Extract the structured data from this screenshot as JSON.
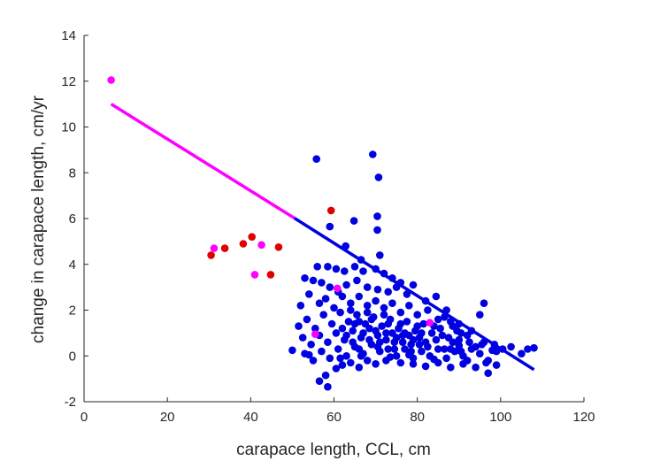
{
  "chart_data": {
    "type": "scatter",
    "xlabel": "carapace length, CCL, cm",
    "ylabel": "change in carapace length, cm/yr",
    "xlim": [
      0,
      120
    ],
    "ylim": [
      -2,
      14
    ],
    "xticks": [
      0,
      20,
      40,
      60,
      80,
      100,
      120
    ],
    "yticks": [
      -2,
      0,
      2,
      4,
      6,
      8,
      10,
      12,
      14
    ],
    "grid": false,
    "colors": {
      "blue": "#0000e0",
      "red": "#e00000",
      "magenta": "#ff00ff",
      "axis": "#262626"
    },
    "fit_line": {
      "segments": [
        {
          "x": [
            6.5,
            50.5
          ],
          "y": [
            11.0,
            6.02
          ],
          "color": "#ff00ff"
        },
        {
          "x": [
            50.5,
            108.0
          ],
          "y": [
            6.02,
            -0.6
          ],
          "color": "#0000e0"
        }
      ]
    },
    "series": [
      {
        "color": "#ff00ff",
        "points": [
          [
            6.5,
            12.05
          ],
          [
            31.2,
            4.7
          ],
          [
            41.0,
            3.55
          ],
          [
            42.6,
            4.85
          ],
          [
            55.5,
            0.95
          ],
          [
            60.8,
            2.95
          ],
          [
            83.0,
            1.45
          ]
        ]
      },
      {
        "color": "#e00000",
        "points": [
          [
            30.5,
            4.4
          ],
          [
            33.8,
            4.7
          ],
          [
            38.2,
            4.9
          ],
          [
            40.3,
            5.2
          ],
          [
            44.8,
            3.55
          ],
          [
            46.7,
            4.75
          ],
          [
            59.3,
            6.35
          ]
        ]
      },
      {
        "color": "#0000e0",
        "points": [
          [
            55.8,
            8.6
          ],
          [
            69.3,
            8.8
          ],
          [
            70.7,
            7.8
          ],
          [
            70.4,
            6.1
          ],
          [
            70.4,
            5.5
          ],
          [
            64.8,
            5.9
          ],
          [
            59.0,
            5.65
          ],
          [
            62.8,
            4.8
          ],
          [
            66.5,
            4.2
          ],
          [
            71.0,
            4.4
          ],
          [
            56.0,
            3.9
          ],
          [
            58.5,
            3.9
          ],
          [
            60.5,
            3.8
          ],
          [
            62.5,
            3.7
          ],
          [
            65.0,
            3.9
          ],
          [
            67.0,
            3.7
          ],
          [
            70.0,
            3.8
          ],
          [
            72.0,
            3.6
          ],
          [
            74.0,
            3.4
          ],
          [
            76.0,
            3.2
          ],
          [
            53.0,
            3.4
          ],
          [
            55.0,
            3.3
          ],
          [
            57.0,
            3.2
          ],
          [
            59.0,
            3.0
          ],
          [
            61.0,
            2.8
          ],
          [
            63.0,
            3.1
          ],
          [
            65.5,
            3.3
          ],
          [
            68.0,
            3.0
          ],
          [
            70.5,
            2.9
          ],
          [
            73.0,
            2.8
          ],
          [
            75.0,
            3.0
          ],
          [
            77.5,
            2.7
          ],
          [
            79.0,
            3.1
          ],
          [
            82.0,
            2.4
          ],
          [
            84.5,
            2.6
          ],
          [
            87.0,
            2.0
          ],
          [
            90.0,
            1.4
          ],
          [
            93.0,
            1.1
          ],
          [
            95.0,
            1.8
          ],
          [
            96.0,
            2.3
          ],
          [
            52.0,
            2.2
          ],
          [
            54.0,
            2.7
          ],
          [
            56.5,
            2.3
          ],
          [
            58.0,
            2.5
          ],
          [
            60.0,
            2.1
          ],
          [
            62.0,
            2.6
          ],
          [
            64.0,
            2.3
          ],
          [
            66.0,
            2.6
          ],
          [
            68.0,
            2.2
          ],
          [
            70.0,
            2.4
          ],
          [
            72.0,
            2.1
          ],
          [
            74.0,
            2.3
          ],
          [
            76.0,
            1.9
          ],
          [
            78.0,
            2.2
          ],
          [
            80.0,
            1.8
          ],
          [
            82.5,
            2.0
          ],
          [
            85.0,
            1.6
          ],
          [
            88.0,
            1.5
          ],
          [
            90.5,
            1.0
          ],
          [
            92.0,
            0.9
          ],
          [
            51.5,
            1.3
          ],
          [
            53.5,
            1.6
          ],
          [
            55.5,
            1.2
          ],
          [
            57.5,
            1.8
          ],
          [
            59.5,
            1.4
          ],
          [
            61.5,
            1.9
          ],
          [
            63.5,
            1.5
          ],
          [
            65.5,
            1.8
          ],
          [
            67.5,
            1.4
          ],
          [
            69.5,
            1.7
          ],
          [
            71.5,
            1.3
          ],
          [
            73.5,
            1.6
          ],
          [
            75.5,
            1.2
          ],
          [
            77.5,
            1.5
          ],
          [
            79.5,
            1.1
          ],
          [
            81.5,
            1.4
          ],
          [
            83.5,
            1.0
          ],
          [
            85.5,
            1.2
          ],
          [
            87.5,
            0.8
          ],
          [
            89.5,
            1.1
          ],
          [
            52.5,
            0.8
          ],
          [
            54.5,
            0.5
          ],
          [
            56.5,
            0.9
          ],
          [
            58.5,
            0.6
          ],
          [
            60.5,
            1.0
          ],
          [
            62.5,
            0.7
          ],
          [
            64.5,
            1.1
          ],
          [
            66.5,
            0.8
          ],
          [
            68.5,
            1.2
          ],
          [
            70.5,
            0.9
          ],
          [
            72.5,
            1.0
          ],
          [
            74.5,
            0.6
          ],
          [
            76.5,
            0.9
          ],
          [
            78.5,
            0.5
          ],
          [
            80.5,
            0.8
          ],
          [
            82.5,
            0.4
          ],
          [
            84.5,
            0.7
          ],
          [
            86.5,
            0.3
          ],
          [
            88.5,
            0.6
          ],
          [
            90.5,
            0.2
          ],
          [
            53.0,
            0.1
          ],
          [
            55.0,
            -0.2
          ],
          [
            57.0,
            0.2
          ],
          [
            59.0,
            -0.1
          ],
          [
            61.0,
            0.3
          ],
          [
            63.0,
            0.0
          ],
          [
            65.0,
            0.4
          ],
          [
            67.0,
            0.1
          ],
          [
            69.0,
            0.5
          ],
          [
            71.0,
            0.2
          ],
          [
            73.0,
            0.3
          ],
          [
            75.0,
            0.0
          ],
          [
            77.0,
            0.3
          ],
          [
            79.0,
            -0.1
          ],
          [
            81.0,
            0.2
          ],
          [
            83.0,
            0.0
          ],
          [
            85.0,
            0.3
          ],
          [
            87.0,
            -0.1
          ],
          [
            89.0,
            0.2
          ],
          [
            91.0,
            0.0
          ],
          [
            93.0,
            0.3
          ],
          [
            95.0,
            0.1
          ],
          [
            97.0,
            -0.2
          ],
          [
            99.0,
            0.2
          ],
          [
            100.5,
            0.3
          ],
          [
            102.5,
            0.4
          ],
          [
            105.0,
            0.1
          ],
          [
            106.5,
            0.3
          ],
          [
            108.0,
            0.35
          ],
          [
            96.5,
            -0.3
          ],
          [
            56.5,
            -1.1
          ],
          [
            58.5,
            -1.35
          ],
          [
            58.0,
            -0.85
          ],
          [
            60.5,
            -0.55
          ],
          [
            62.0,
            -0.4
          ],
          [
            64.0,
            -0.3
          ],
          [
            66.0,
            -0.5
          ],
          [
            68.0,
            -0.2
          ],
          [
            70.0,
            -0.35
          ],
          [
            72.5,
            -0.2
          ],
          [
            76.0,
            -0.3
          ],
          [
            79.0,
            -0.35
          ],
          [
            82.0,
            -0.45
          ],
          [
            85.0,
            -0.3
          ],
          [
            88.0,
            -0.5
          ],
          [
            91.0,
            -0.35
          ],
          [
            94.0,
            -0.5
          ],
          [
            97.0,
            -0.75
          ],
          [
            99.0,
            -0.4
          ],
          [
            92.0,
            -0.2
          ],
          [
            50.0,
            0.25
          ],
          [
            54.0,
            0.05
          ],
          [
            61.5,
            -0.1
          ],
          [
            66.5,
            0.0
          ],
          [
            73.5,
            -0.05
          ],
          [
            78.0,
            0.05
          ],
          [
            84.0,
            -0.15
          ],
          [
            90.0,
            0.45
          ],
          [
            95.5,
            0.5
          ],
          [
            98.0,
            0.25
          ],
          [
            63.0,
            0.9
          ],
          [
            65.0,
            1.4
          ],
          [
            67.0,
            1.0
          ],
          [
            69.0,
            1.6
          ],
          [
            71.0,
            0.6
          ],
          [
            73.0,
            1.4
          ],
          [
            75.0,
            0.8
          ],
          [
            77.0,
            1.0
          ],
          [
            79.0,
            0.7
          ],
          [
            81.0,
            1.0
          ],
          [
            64.0,
            2.0
          ],
          [
            66.0,
            1.5
          ],
          [
            68.0,
            1.9
          ],
          [
            70.0,
            1.1
          ],
          [
            72.0,
            1.8
          ],
          [
            74.0,
            1.0
          ],
          [
            76.0,
            1.4
          ],
          [
            78.0,
            0.9
          ],
          [
            80.0,
            1.3
          ],
          [
            82.0,
            0.6
          ],
          [
            62.0,
            1.2
          ],
          [
            64.5,
            0.6
          ],
          [
            66.0,
            0.3
          ],
          [
            68.5,
            0.7
          ],
          [
            70.5,
            0.4
          ],
          [
            72.5,
            0.7
          ],
          [
            74.5,
            0.3
          ],
          [
            76.5,
            0.6
          ],
          [
            78.5,
            0.2
          ],
          [
            80.5,
            0.5
          ],
          [
            86.0,
            0.9
          ],
          [
            88.0,
            0.3
          ],
          [
            90.0,
            0.7
          ],
          [
            92.5,
            0.6
          ],
          [
            94.0,
            0.4
          ],
          [
            96.0,
            0.6
          ],
          [
            98.5,
            0.5
          ],
          [
            86.5,
            1.7
          ],
          [
            88.5,
            1.3
          ],
          [
            84.0,
            1.3
          ]
        ]
      }
    ]
  }
}
